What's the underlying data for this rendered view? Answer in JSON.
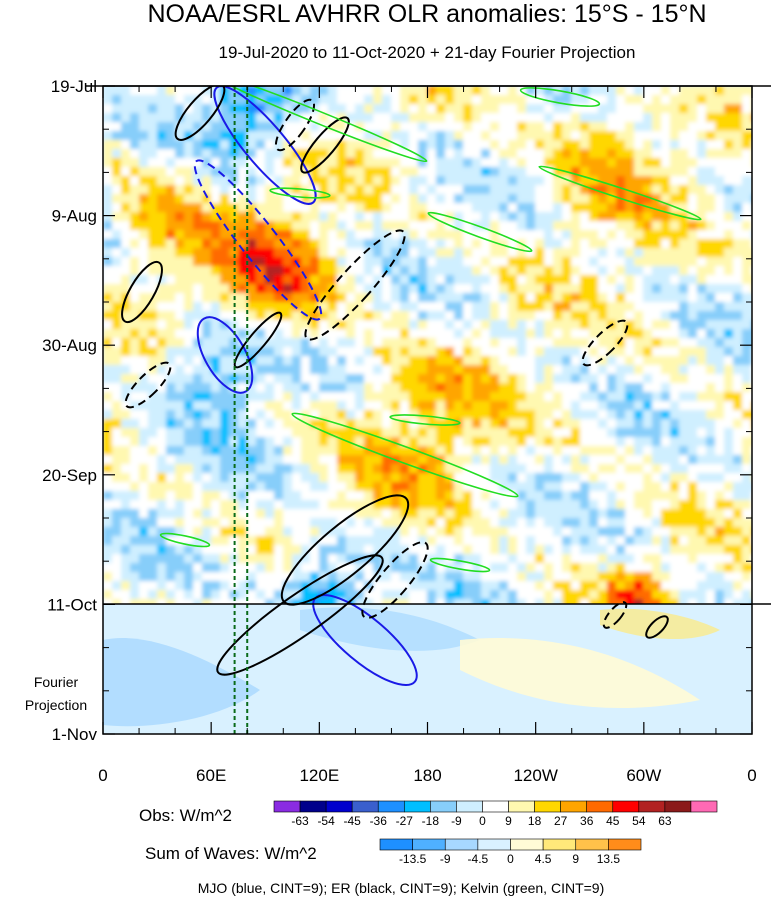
{
  "title": "NOAA/ESRL AVHRR OLR anomalies: 15°S - 15°N",
  "subtitle": "19-Jul-2020 to 11-Oct-2020 + 21-day Fourier Projection",
  "chart_data": {
    "type": "heatmap",
    "title": "NOAA/ESRL AVHRR OLR anomalies: 15°S - 15°N",
    "subtitle": "19-Jul-2020 to 11-Oct-2020 + 21-day Fourier Projection",
    "x_ticks": [
      {
        "lon": 0,
        "label": "0"
      },
      {
        "lon": 60,
        "label": "60E"
      },
      {
        "lon": 120,
        "label": "120E"
      },
      {
        "lon": 180,
        "label": "180"
      },
      {
        "lon": 240,
        "label": "120W"
      },
      {
        "lon": 300,
        "label": "60W"
      },
      {
        "lon": 360,
        "label": "0"
      }
    ],
    "xlim": [
      0,
      360
    ],
    "y_ticks": [
      {
        "date": "2020-07-19",
        "label": "19-Jul"
      },
      {
        "date": "2020-08-09",
        "label": "9-Aug"
      },
      {
        "date": "2020-08-30",
        "label": "30-Aug"
      },
      {
        "date": "2020-09-20",
        "label": "20-Sep"
      },
      {
        "date": "2020-10-11",
        "label": "11-Oct"
      },
      {
        "date": "2020-11-01",
        "label": "1-Nov"
      }
    ],
    "ylim": [
      "2020-07-19",
      "2020-11-01"
    ],
    "projection_start": "2020-10-11",
    "projection_label_line1": "Fourier",
    "projection_label_line2": "Projection",
    "reference_lines_lon": [
      73,
      80
    ],
    "obs_colorbar": {
      "label": "Obs: W/m^2",
      "levels": [
        "-63",
        "-54",
        "-45",
        "-36",
        "-27",
        "-18",
        "-9",
        "0",
        "9",
        "18",
        "27",
        "36",
        "45",
        "54",
        "63"
      ],
      "colors": [
        "#8a2be2",
        "#00008b",
        "#0000cd",
        "#3a5fcd",
        "#1e90ff",
        "#00bfff",
        "#87cefa",
        "#cfefff",
        "#ffffff",
        "#fff8b0",
        "#ffd700",
        "#ffa500",
        "#ff6a00",
        "#ff0000",
        "#b22222",
        "#8b1a1a",
        "#ff69b4"
      ]
    },
    "waves_colorbar": {
      "label": "Sum of Waves: W/m^2",
      "levels": [
        "-13.5",
        "-9",
        "-4.5",
        "0",
        "4.5",
        "9",
        "13.5"
      ],
      "colors": [
        "#1e90ff",
        "#4fb0ff",
        "#a7d8ff",
        "#d9f1ff",
        "#fffbd6",
        "#ffe97a",
        "#ffc14a",
        "#ff8c1a"
      ]
    },
    "waves": [
      {
        "name": "MJO",
        "color": "blue"
      },
      {
        "name": "ER",
        "color": "black"
      },
      {
        "name": "Kelvin",
        "color": "green"
      }
    ],
    "footnote": "MJO (blue, CINT=9); ER (black, CINT=9); Kelvin (green, CINT=9)"
  }
}
